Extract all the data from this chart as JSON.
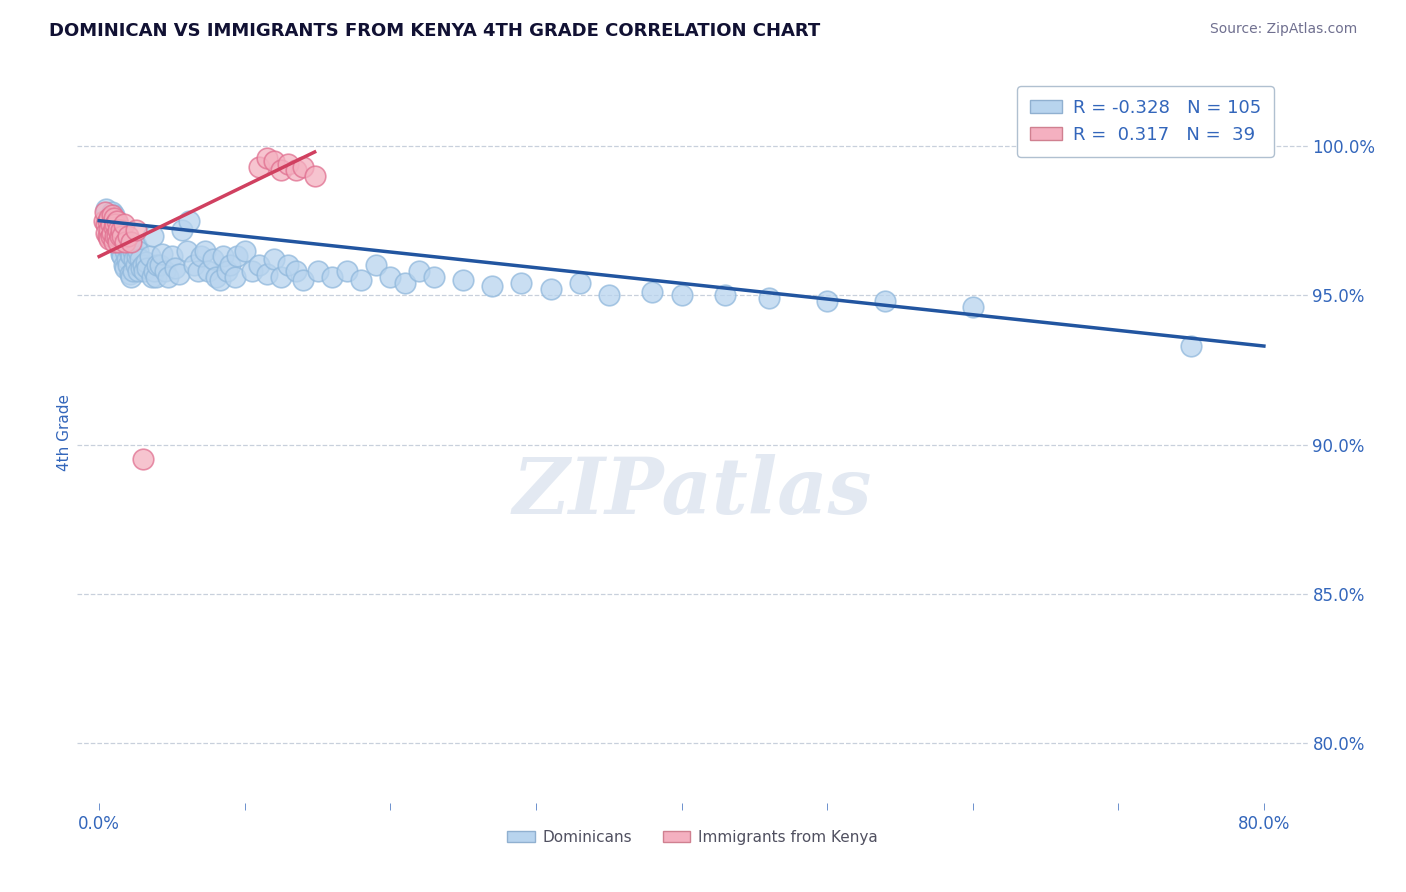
{
  "title": "DOMINICAN VS IMMIGRANTS FROM KENYA 4TH GRADE CORRELATION CHART",
  "source": "Source: ZipAtlas.com",
  "ylabel": "4th Grade",
  "x_ticks": [
    0.0,
    0.1,
    0.2,
    0.3,
    0.4,
    0.5,
    0.6,
    0.7,
    0.8
  ],
  "y_ticks": [
    0.8,
    0.85,
    0.9,
    0.95,
    1.0
  ],
  "y_tick_labels": [
    "80.0%",
    "85.0%",
    "90.0%",
    "95.0%",
    "100.0%"
  ],
  "xlim": [
    -0.015,
    0.83
  ],
  "ylim": [
    0.78,
    1.028
  ],
  "blue_R": -0.328,
  "blue_N": 105,
  "pink_R": 0.317,
  "pink_N": 39,
  "blue_color": "#b8d4ee",
  "blue_edge_color": "#90b8dc",
  "blue_line_color": "#2255a0",
  "pink_color": "#f4b0c0",
  "pink_edge_color": "#e07090",
  "pink_line_color": "#d04060",
  "legend_blue_label": "Dominicans",
  "legend_pink_label": "Immigrants from Kenya",
  "watermark": "ZIPatlas",
  "blue_scatter_x": [
    0.005,
    0.007,
    0.008,
    0.009,
    0.01,
    0.01,
    0.011,
    0.011,
    0.012,
    0.012,
    0.013,
    0.013,
    0.014,
    0.014,
    0.015,
    0.015,
    0.016,
    0.016,
    0.017,
    0.017,
    0.018,
    0.018,
    0.019,
    0.019,
    0.02,
    0.02,
    0.021,
    0.021,
    0.022,
    0.022,
    0.023,
    0.023,
    0.024,
    0.025,
    0.025,
    0.026,
    0.027,
    0.027,
    0.028,
    0.029,
    0.03,
    0.031,
    0.032,
    0.033,
    0.035,
    0.036,
    0.037,
    0.038,
    0.039,
    0.04,
    0.042,
    0.043,
    0.045,
    0.047,
    0.05,
    0.052,
    0.055,
    0.057,
    0.06,
    0.062,
    0.065,
    0.068,
    0.07,
    0.073,
    0.075,
    0.078,
    0.08,
    0.083,
    0.085,
    0.088,
    0.09,
    0.093,
    0.095,
    0.1,
    0.105,
    0.11,
    0.115,
    0.12,
    0.125,
    0.13,
    0.135,
    0.14,
    0.15,
    0.16,
    0.17,
    0.18,
    0.19,
    0.2,
    0.21,
    0.22,
    0.23,
    0.25,
    0.27,
    0.29,
    0.31,
    0.33,
    0.35,
    0.38,
    0.4,
    0.43,
    0.46,
    0.5,
    0.54,
    0.6,
    0.75
  ],
  "blue_scatter_y": [
    0.979,
    0.976,
    0.975,
    0.978,
    0.977,
    0.973,
    0.975,
    0.97,
    0.968,
    0.972,
    0.974,
    0.969,
    0.971,
    0.966,
    0.97,
    0.964,
    0.969,
    0.963,
    0.967,
    0.96,
    0.965,
    0.959,
    0.968,
    0.962,
    0.966,
    0.96,
    0.964,
    0.957,
    0.963,
    0.956,
    0.965,
    0.958,
    0.962,
    0.967,
    0.96,
    0.963,
    0.965,
    0.958,
    0.962,
    0.959,
    0.96,
    0.958,
    0.961,
    0.959,
    0.963,
    0.956,
    0.97,
    0.958,
    0.956,
    0.96,
    0.96,
    0.964,
    0.958,
    0.956,
    0.963,
    0.959,
    0.957,
    0.972,
    0.965,
    0.975,
    0.96,
    0.958,
    0.963,
    0.965,
    0.958,
    0.962,
    0.956,
    0.955,
    0.963,
    0.958,
    0.96,
    0.956,
    0.963,
    0.965,
    0.958,
    0.96,
    0.957,
    0.962,
    0.956,
    0.96,
    0.958,
    0.955,
    0.958,
    0.956,
    0.958,
    0.955,
    0.96,
    0.956,
    0.954,
    0.958,
    0.956,
    0.955,
    0.953,
    0.954,
    0.952,
    0.954,
    0.95,
    0.951,
    0.95,
    0.95,
    0.949,
    0.948,
    0.948,
    0.946,
    0.933
  ],
  "pink_scatter_x": [
    0.003,
    0.004,
    0.005,
    0.005,
    0.006,
    0.006,
    0.007,
    0.007,
    0.007,
    0.008,
    0.008,
    0.009,
    0.009,
    0.01,
    0.01,
    0.01,
    0.011,
    0.011,
    0.012,
    0.012,
    0.013,
    0.013,
    0.014,
    0.015,
    0.016,
    0.017,
    0.018,
    0.02,
    0.022,
    0.025,
    0.11,
    0.115,
    0.12,
    0.125,
    0.13,
    0.135,
    0.14,
    0.148,
    0.03
  ],
  "pink_scatter_y": [
    0.975,
    0.978,
    0.974,
    0.971,
    0.975,
    0.97,
    0.976,
    0.972,
    0.969,
    0.974,
    0.97,
    0.977,
    0.971,
    0.976,
    0.973,
    0.968,
    0.974,
    0.97,
    0.975,
    0.97,
    0.972,
    0.968,
    0.97,
    0.972,
    0.97,
    0.974,
    0.968,
    0.97,
    0.968,
    0.972,
    0.993,
    0.996,
    0.995,
    0.992,
    0.994,
    0.992,
    0.993,
    0.99,
    0.895
  ],
  "blue_trendline_x": [
    0.0,
    0.8
  ],
  "blue_trendline_y": [
    0.975,
    0.933
  ],
  "pink_trendline_x": [
    0.0,
    0.148
  ],
  "pink_trendline_y": [
    0.963,
    0.998
  ]
}
